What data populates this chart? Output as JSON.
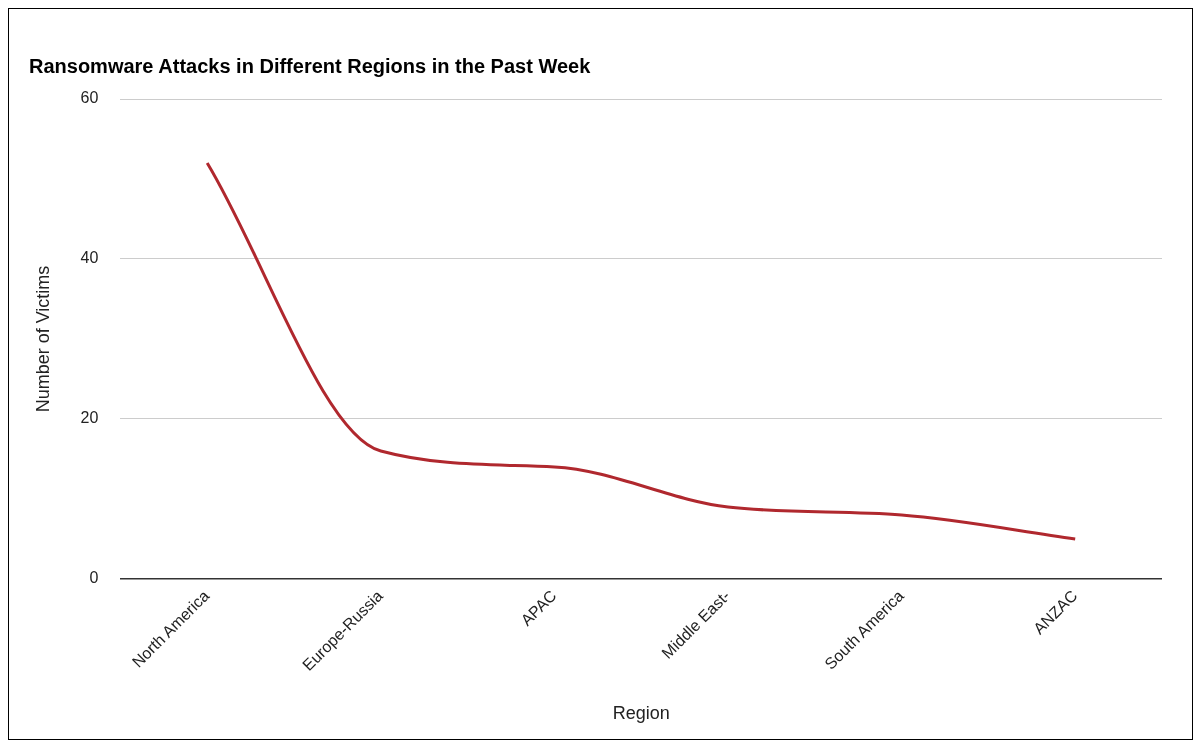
{
  "chart_data": {
    "type": "line",
    "title": "Ransomware Attacks in Different Regions in the Past Week",
    "xlabel": "Region",
    "ylabel": "Number of Victims",
    "categories": [
      "North America",
      "Europe-Russia",
      "APAC",
      "Middle East-",
      "South America",
      "ANZAC"
    ],
    "series": [
      {
        "color": "#b0282e",
        "values": [
          52,
          16,
          14,
          9,
          8,
          5
        ]
      }
    ],
    "ylim": [
      0,
      60
    ],
    "yticks": [
      0,
      20,
      40,
      60
    ],
    "grid": "y",
    "legend": false,
    "marker": "none",
    "line_style": "solid"
  }
}
